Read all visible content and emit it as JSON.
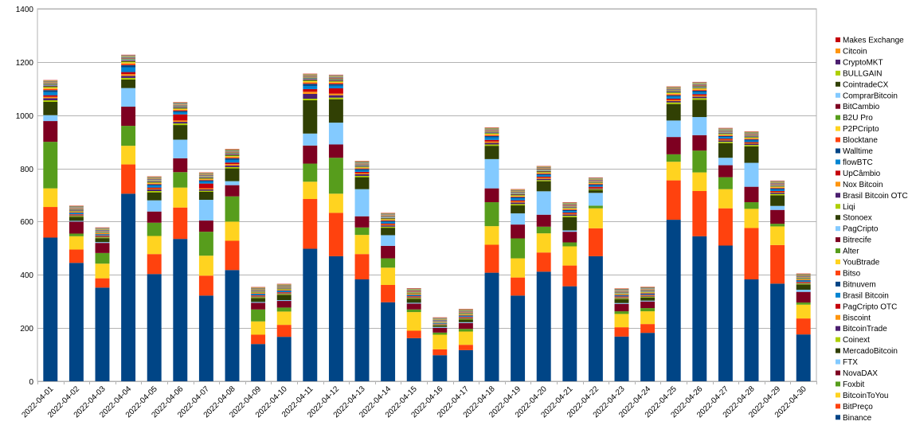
{
  "chart_data": {
    "type": "bar",
    "stacked": true,
    "title": "",
    "xlabel": "",
    "ylabel": "",
    "ylim": [
      0,
      1400
    ],
    "yticks": [
      0,
      200,
      400,
      600,
      800,
      1000,
      1200,
      1400
    ],
    "grid": true,
    "legend_position": "right",
    "categories": [
      "2022-04-01",
      "2022-04-02",
      "2022-04-03",
      "2022-04-04",
      "2022-04-05",
      "2022-04-06",
      "2022-04-07",
      "2022-04-08",
      "2022-04-09",
      "2022-04-10",
      "2022-04-11",
      "2022-04-12",
      "2022-04-13",
      "2022-04-14",
      "2022-04-15",
      "2022-04-16",
      "2022-04-17",
      "2022-04-18",
      "2022-04-19",
      "2022-04-20",
      "2022-04-21",
      "2022-04-22",
      "2022-04-23",
      "2022-04-24",
      "2022-04-25",
      "2022-04-26",
      "2022-04-27",
      "2022-04-28",
      "2022-04-29",
      "2022-04-30"
    ],
    "series": [
      {
        "name": "Binance",
        "color": "#004586",
        "values": [
          540,
          445,
          352,
          705,
          403,
          535,
          322,
          418,
          140,
          167,
          498,
          470,
          383,
          297,
          162,
          98,
          117,
          408,
          322,
          412,
          357,
          470,
          168,
          182,
          607,
          545,
          510,
          383,
          367,
          176
        ]
      },
      {
        "name": "BitPreço",
        "color": "#ff420e",
        "values": [
          115,
          50,
          35,
          110,
          75,
          118,
          75,
          110,
          35,
          45,
          187,
          163,
          95,
          65,
          28,
          22,
          20,
          105,
          68,
          72,
          78,
          105,
          35,
          33,
          148,
          170,
          140,
          193,
          145,
          60
        ]
      },
      {
        "name": "BitcoinToYou",
        "color": "#ffd320",
        "values": [
          70,
          50,
          55,
          70,
          68,
          75,
          75,
          72,
          50,
          50,
          65,
          72,
          72,
          65,
          70,
          55,
          50,
          70,
          72,
          72,
          72,
          75,
          50,
          48,
          70,
          70,
          72,
          72,
          70,
          52
        ]
      },
      {
        "name": "Foxbit",
        "color": "#579d1c",
        "values": [
          175,
          10,
          40,
          75,
          50,
          58,
          90,
          95,
          45,
          15,
          68,
          135,
          28,
          35,
          10,
          8,
          10,
          90,
          75,
          25,
          15,
          10,
          10,
          12,
          28,
          82,
          45,
          25,
          10,
          8
        ]
      },
      {
        "name": "NovaDAX",
        "color": "#7e0021",
        "values": [
          78,
          45,
          38,
          72,
          42,
          52,
          42,
          42,
          25,
          25,
          68,
          50,
          42,
          47,
          22,
          18,
          22,
          52,
          52,
          45,
          40,
          0,
          28,
          25,
          65,
          58,
          45,
          58,
          52,
          40
        ]
      },
      {
        "name": "FTX",
        "color": "#83caff",
        "values": [
          22,
          3,
          3,
          70,
          42,
          70,
          78,
          15,
          3,
          3,
          45,
          82,
          102,
          40,
          3,
          3,
          3,
          110,
          42,
          88,
          5,
          48,
          3,
          3,
          62,
          68,
          28,
          90,
          15,
          8
        ]
      },
      {
        "name": "MercadoBitcoin",
        "color": "#314004",
        "values": [
          50,
          15,
          15,
          32,
          30,
          55,
          30,
          48,
          15,
          20,
          125,
          88,
          45,
          28,
          15,
          5,
          10,
          50,
          30,
          38,
          50,
          10,
          15,
          12,
          62,
          65,
          55,
          62,
          40,
          20
        ]
      },
      {
        "name": "Coinext",
        "color": "#aecf00",
        "values": [
          6,
          3,
          3,
          6,
          5,
          6,
          4,
          5,
          3,
          3,
          6,
          6,
          5,
          4,
          3,
          2,
          3,
          5,
          5,
          4,
          5,
          3,
          3,
          3,
          6,
          6,
          5,
          5,
          5,
          3
        ]
      },
      {
        "name": "BitcoinTrade",
        "color": "#4b1f6f",
        "values": [
          8,
          3,
          3,
          8,
          6,
          6,
          5,
          6,
          3,
          3,
          18,
          9,
          6,
          5,
          3,
          2,
          3,
          6,
          6,
          5,
          5,
          3,
          3,
          3,
          5,
          6,
          5,
          5,
          5,
          3
        ]
      },
      {
        "name": "Biscoint",
        "color": "#ff950e",
        "values": [
          5,
          2,
          2,
          6,
          3,
          5,
          4,
          5,
          2,
          2,
          8,
          6,
          4,
          3,
          2,
          1,
          2,
          5,
          4,
          4,
          3,
          2,
          2,
          2,
          4,
          4,
          3,
          3,
          3,
          2
        ]
      },
      {
        "name": "PagCripto OTC",
        "color": "#c5000b",
        "values": [
          6,
          2,
          2,
          8,
          4,
          23,
          18,
          6,
          2,
          2,
          10,
          20,
          5,
          4,
          2,
          1,
          2,
          6,
          4,
          4,
          4,
          5,
          2,
          2,
          5,
          5,
          4,
          3,
          3,
          2
        ]
      },
      {
        "name": "Brasil Bitcoin",
        "color": "#0084d1",
        "values": [
          12,
          4,
          3,
          18,
          8,
          8,
          8,
          10,
          4,
          4,
          12,
          10,
          6,
          6,
          3,
          2,
          3,
          10,
          8,
          6,
          6,
          5,
          3,
          3,
          8,
          8,
          6,
          6,
          6,
          4
        ]
      },
      {
        "name": "Bitnuvem",
        "color": "#004586",
        "values": [
          7,
          2,
          2,
          8,
          4,
          5,
          4,
          6,
          2,
          2,
          8,
          6,
          5,
          4,
          2,
          1,
          2,
          5,
          4,
          4,
          4,
          4,
          2,
          2,
          5,
          5,
          4,
          4,
          4,
          2
        ]
      },
      {
        "name": "Bitso",
        "color": "#ff420e",
        "values": [
          5,
          2,
          2,
          6,
          3,
          4,
          3,
          4,
          2,
          2,
          5,
          5,
          3,
          3,
          2,
          1,
          2,
          4,
          3,
          3,
          3,
          3,
          2,
          2,
          4,
          4,
          3,
          3,
          3,
          2
        ]
      },
      {
        "name": "YouBtrade",
        "color": "#ffd320",
        "values": [
          5,
          2,
          2,
          5,
          3,
          4,
          3,
          4,
          2,
          2,
          5,
          4,
          3,
          3,
          2,
          1,
          2,
          4,
          3,
          3,
          3,
          2,
          2,
          2,
          4,
          4,
          3,
          3,
          3,
          2
        ]
      },
      {
        "name": "Alter",
        "color": "#579d1c",
        "values": [
          4,
          2,
          2,
          4,
          3,
          3,
          3,
          4,
          2,
          2,
          4,
          3,
          3,
          3,
          2,
          1,
          2,
          3,
          3,
          3,
          2,
          2,
          2,
          2,
          3,
          3,
          3,
          3,
          2,
          2
        ]
      },
      {
        "name": "Bitrecife",
        "color": "#7e0021",
        "values": [
          3,
          2,
          1,
          3,
          2,
          2,
          2,
          3,
          1,
          1,
          3,
          3,
          2,
          2,
          1,
          1,
          1,
          2,
          2,
          2,
          2,
          1,
          1,
          1,
          2,
          2,
          2,
          2,
          2,
          1
        ]
      },
      {
        "name": "PagCripto",
        "color": "#83caff",
        "values": [
          3,
          1,
          1,
          3,
          2,
          2,
          2,
          2,
          1,
          1,
          3,
          2,
          2,
          2,
          1,
          1,
          1,
          2,
          2,
          2,
          2,
          1,
          1,
          1,
          2,
          2,
          2,
          2,
          2,
          1
        ]
      },
      {
        "name": "Stonoex",
        "color": "#314004",
        "values": [
          2,
          1,
          1,
          2,
          1,
          2,
          1,
          2,
          1,
          1,
          2,
          2,
          1,
          1,
          1,
          1,
          1,
          1,
          1,
          1,
          1,
          1,
          1,
          1,
          2,
          2,
          1,
          1,
          1,
          1
        ]
      },
      {
        "name": "Liqi",
        "color": "#aecf00",
        "values": [
          1,
          1,
          1,
          1,
          1,
          1,
          1,
          1,
          1,
          1,
          1,
          1,
          1,
          1,
          1,
          1,
          1,
          1,
          1,
          1,
          1,
          1,
          1,
          1,
          1,
          1,
          1,
          1,
          1,
          1
        ]
      },
      {
        "name": "Brasil Bitcoin OTC",
        "color": "#4b1f6f",
        "values": [
          1,
          1,
          1,
          1,
          1,
          1,
          1,
          1,
          1,
          1,
          1,
          1,
          1,
          1,
          1,
          1,
          1,
          1,
          1,
          1,
          1,
          1,
          1,
          1,
          1,
          1,
          1,
          1,
          1,
          1
        ]
      },
      {
        "name": "Nox Bitcoin",
        "color": "#ff950e",
        "values": [
          1,
          1,
          1,
          1,
          1,
          1,
          1,
          1,
          1,
          1,
          1,
          1,
          1,
          1,
          1,
          1,
          1,
          1,
          1,
          1,
          1,
          1,
          1,
          1,
          1,
          1,
          1,
          1,
          1,
          1
        ]
      },
      {
        "name": "UpCâmbio",
        "color": "#c5000b",
        "values": [
          1,
          1,
          1,
          1,
          1,
          1,
          1,
          1,
          1,
          1,
          1,
          1,
          1,
          1,
          1,
          1,
          1,
          1,
          1,
          1,
          1,
          1,
          1,
          1,
          1,
          1,
          1,
          1,
          1,
          1
        ]
      },
      {
        "name": "flowBTC",
        "color": "#0084d1",
        "values": [
          1,
          1,
          1,
          1,
          1,
          1,
          1,
          1,
          1,
          1,
          1,
          1,
          1,
          1,
          1,
          1,
          1,
          1,
          1,
          1,
          1,
          1,
          1,
          1,
          1,
          1,
          1,
          1,
          1,
          1
        ]
      },
      {
        "name": "Walltime",
        "color": "#004586",
        "values": [
          1,
          1,
          1,
          1,
          1,
          1,
          1,
          1,
          1,
          1,
          1,
          1,
          1,
          1,
          1,
          1,
          1,
          1,
          1,
          1,
          1,
          1,
          1,
          1,
          1,
          1,
          1,
          1,
          1,
          1
        ]
      },
      {
        "name": "Blocktane",
        "color": "#ff420e",
        "values": [
          1,
          1,
          1,
          1,
          1,
          1,
          1,
          1,
          1,
          1,
          1,
          1,
          1,
          1,
          1,
          1,
          1,
          1,
          1,
          1,
          1,
          1,
          1,
          1,
          1,
          1,
          1,
          1,
          1,
          1
        ]
      },
      {
        "name": "P2PCripto",
        "color": "#ffd320",
        "values": [
          1,
          1,
          1,
          1,
          1,
          1,
          1,
          1,
          1,
          1,
          1,
          1,
          1,
          1,
          1,
          1,
          1,
          1,
          1,
          1,
          1,
          1,
          1,
          1,
          1,
          1,
          1,
          1,
          1,
          1
        ]
      },
      {
        "name": "B2U Pro",
        "color": "#579d1c",
        "values": [
          1,
          1,
          1,
          1,
          1,
          1,
          1,
          1,
          1,
          1,
          1,
          1,
          1,
          1,
          1,
          1,
          1,
          1,
          1,
          1,
          1,
          1,
          1,
          1,
          1,
          1,
          1,
          1,
          1,
          1
        ]
      },
      {
        "name": "BitCambio",
        "color": "#7e0021",
        "values": [
          1,
          1,
          1,
          1,
          1,
          1,
          1,
          1,
          1,
          1,
          1,
          1,
          1,
          1,
          1,
          1,
          1,
          1,
          1,
          1,
          1,
          1,
          1,
          1,
          1,
          1,
          1,
          1,
          1,
          1
        ]
      },
      {
        "name": "ComprarBitcoin",
        "color": "#83caff",
        "values": [
          1,
          1,
          1,
          1,
          1,
          1,
          1,
          1,
          1,
          1,
          1,
          1,
          1,
          1,
          1,
          1,
          1,
          1,
          1,
          1,
          1,
          1,
          1,
          1,
          1,
          1,
          1,
          1,
          1,
          1
        ]
      },
      {
        "name": "CointradeCX",
        "color": "#314004",
        "values": [
          1,
          1,
          1,
          1,
          1,
          1,
          1,
          1,
          1,
          1,
          1,
          1,
          1,
          1,
          1,
          1,
          1,
          1,
          1,
          1,
          1,
          1,
          1,
          1,
          1,
          1,
          1,
          1,
          1,
          1
        ]
      },
      {
        "name": "BULLGAIN",
        "color": "#aecf00",
        "values": [
          1,
          1,
          1,
          1,
          1,
          1,
          1,
          1,
          1,
          1,
          1,
          1,
          1,
          1,
          1,
          1,
          1,
          1,
          1,
          1,
          1,
          1,
          1,
          1,
          1,
          1,
          1,
          1,
          1,
          1
        ]
      },
      {
        "name": "CryptoMKT",
        "color": "#4b1f6f",
        "values": [
          1,
          1,
          1,
          1,
          1,
          1,
          1,
          1,
          1,
          1,
          1,
          1,
          1,
          1,
          1,
          1,
          1,
          1,
          1,
          1,
          1,
          1,
          1,
          1,
          1,
          1,
          1,
          1,
          1,
          1
        ]
      },
      {
        "name": "Citcoin",
        "color": "#ff950e",
        "values": [
          1,
          1,
          1,
          1,
          1,
          1,
          1,
          1,
          1,
          1,
          1,
          1,
          1,
          1,
          1,
          1,
          1,
          1,
          1,
          1,
          1,
          1,
          1,
          1,
          1,
          1,
          1,
          1,
          1,
          1
        ]
      },
      {
        "name": "Makes Exchange",
        "color": "#c5000b",
        "values": [
          1,
          1,
          1,
          1,
          1,
          1,
          1,
          1,
          1,
          1,
          1,
          1,
          1,
          1,
          1,
          1,
          1,
          1,
          1,
          1,
          1,
          1,
          1,
          1,
          1,
          1,
          1,
          1,
          1,
          1
        ]
      }
    ]
  }
}
